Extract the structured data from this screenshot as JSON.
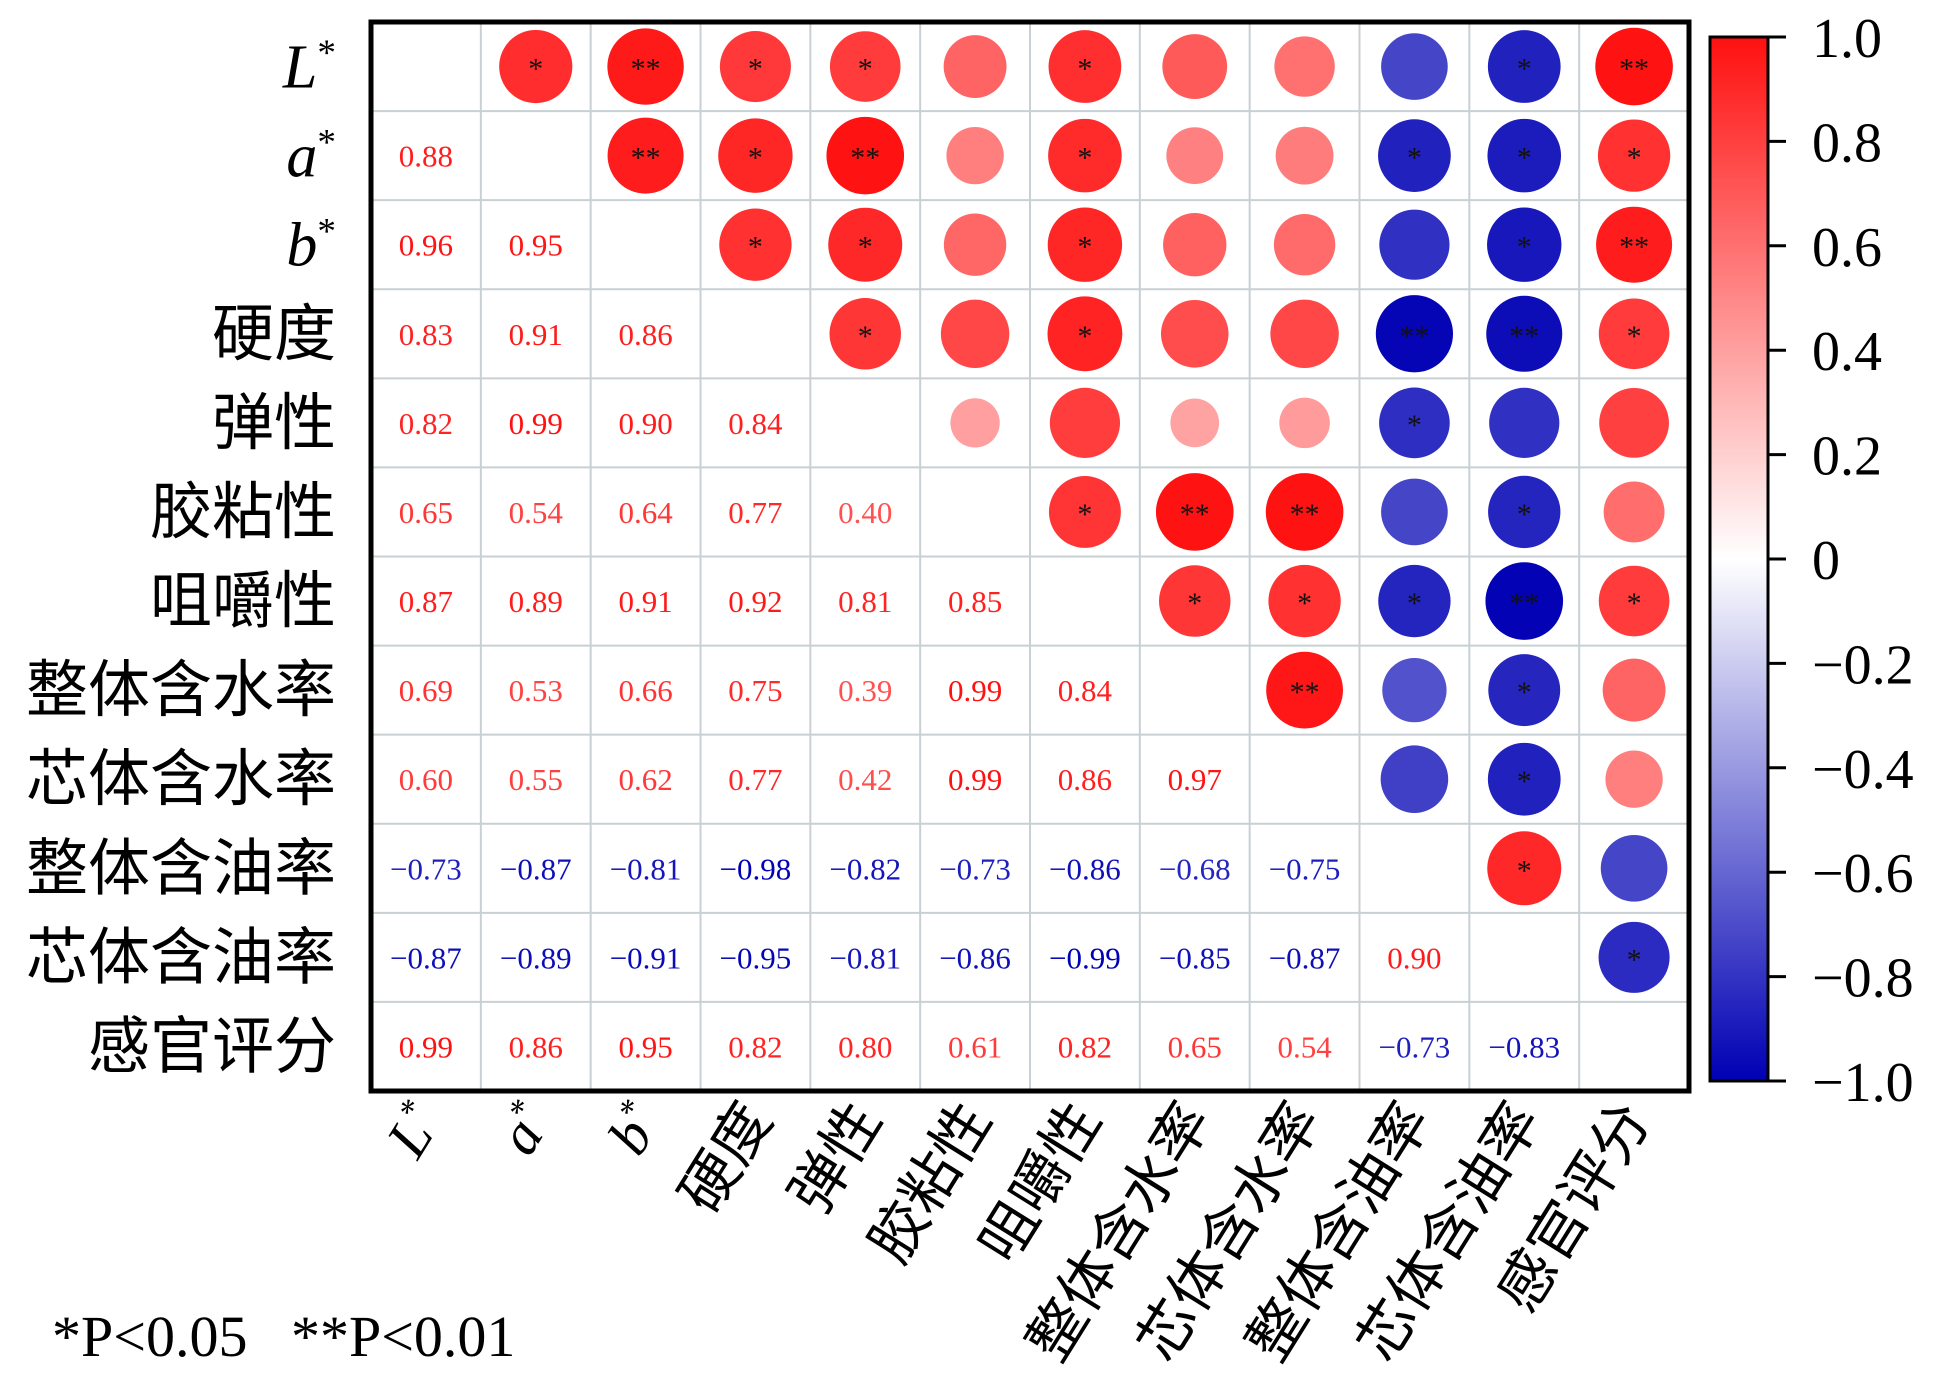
{
  "chart_data": {
    "type": "heatmap",
    "subtype": "correlation-matrix",
    "variables": [
      "L*",
      "a*",
      "b*",
      "硬度",
      "弹性",
      "胶粘性",
      "咀嚼性",
      "整体含水率",
      "芯体含水率",
      "整体含油率",
      "芯体含油率",
      "感官评分"
    ],
    "lower_triangle": [
      [],
      [
        0.88
      ],
      [
        0.96,
        0.95
      ],
      [
        0.83,
        0.91,
        0.86
      ],
      [
        0.82,
        0.99,
        0.9,
        0.84
      ],
      [
        0.65,
        0.54,
        0.64,
        0.77,
        0.4
      ],
      [
        0.87,
        0.89,
        0.91,
        0.92,
        0.81,
        0.85
      ],
      [
        0.69,
        0.53,
        0.66,
        0.75,
        0.39,
        0.99,
        0.84
      ],
      [
        0.6,
        0.55,
        0.62,
        0.77,
        0.42,
        0.99,
        0.86,
        0.97
      ],
      [
        -0.73,
        -0.87,
        -0.81,
        -0.98,
        -0.82,
        -0.73,
        -0.86,
        -0.68,
        -0.75
      ],
      [
        -0.87,
        -0.89,
        -0.91,
        -0.95,
        -0.81,
        -0.86,
        -0.99,
        -0.85,
        -0.87,
        0.9
      ],
      [
        0.99,
        0.86,
        0.95,
        0.82,
        0.8,
        0.61,
        0.82,
        0.65,
        0.54,
        -0.73,
        -0.83
      ]
    ],
    "significance_upper": [
      [
        "",
        "*",
        "**",
        "*",
        "*",
        "",
        "*",
        "",
        "",
        "",
        "*",
        "**"
      ],
      [
        "",
        "",
        "**",
        "*",
        "**",
        "",
        "*",
        "",
        "",
        "*",
        "*",
        "*"
      ],
      [
        "",
        "",
        "",
        "*",
        "*",
        "",
        "*",
        "",
        "",
        "",
        "*",
        "**"
      ],
      [
        "",
        "",
        "",
        "",
        "*",
        "",
        "*",
        "",
        "",
        "**",
        "**",
        "*"
      ],
      [
        "",
        "",
        "",
        "",
        "",
        "",
        "",
        "",
        "",
        "*",
        "",
        ""
      ],
      [
        "",
        "",
        "",
        "",
        "",
        "",
        "*",
        "**",
        "**",
        "",
        "*",
        ""
      ],
      [
        "",
        "",
        "",
        "",
        "",
        "",
        "",
        "*",
        "*",
        "*",
        "**",
        "*"
      ],
      [
        "",
        "",
        "",
        "",
        "",
        "",
        "",
        "",
        "**",
        "",
        "*",
        ""
      ],
      [
        "",
        "",
        "",
        "",
        "",
        "",
        "",
        "",
        "",
        "",
        "*",
        ""
      ],
      [
        "",
        "",
        "",
        "",
        "",
        "",
        "",
        "",
        "",
        "",
        "*",
        ""
      ],
      [
        "",
        "",
        "",
        "",
        "",
        "",
        "",
        "",
        "",
        "",
        "",
        "*"
      ],
      [
        "",
        "",
        "",
        "",
        "",
        "",
        "",
        "",
        "",
        "",
        "",
        ""
      ]
    ],
    "colorbar": {
      "range": [
        -1.0,
        1.0
      ],
      "ticks": [
        "1.0",
        "0.8",
        "0.6",
        "0.4",
        "0.2",
        "0",
        "−0.2",
        "−0.4",
        "−0.6",
        "−0.8",
        "−1.0"
      ],
      "positive_color": "#ff1010",
      "zero_color": "#ffffff",
      "negative_color": "#0000b4"
    },
    "legend_note": "*P<0.05   **P<0.01"
  }
}
